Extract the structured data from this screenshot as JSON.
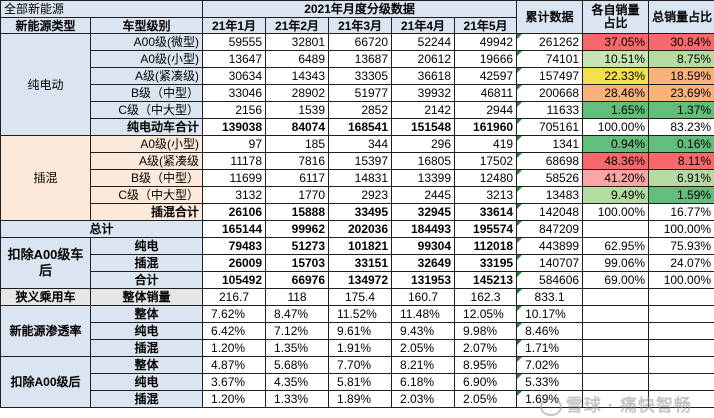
{
  "header": {
    "top_left": "全部新能源",
    "group_title": "2021年月度分级数据",
    "col_type": "新能源类型",
    "col_level": "车型级别",
    "months": [
      "21年1月",
      "21年2月",
      "21年3月",
      "21年4月",
      "21年5月"
    ],
    "cum": "累计数据",
    "share_own": "各自销量占比",
    "share_total": "总销量占比"
  },
  "sections": {
    "ev": "纯电动",
    "phev": "插混",
    "total": "总计",
    "ex_a00": "扣除A00级车后",
    "narrow": "狭义乘用车",
    "penetration": "新能源渗透率",
    "ex_a00_2": "扣除A00级后"
  },
  "rows": {
    "ev": [
      {
        "label": "A00级(微型)",
        "m": [
          "59555",
          "32801",
          "66720",
          "52244",
          "49942"
        ],
        "cum": "261262",
        "own": "37.05%",
        "tot": "30.84%"
      },
      {
        "label": "A0级(小型)",
        "m": [
          "13647",
          "6489",
          "13687",
          "20612",
          "19666"
        ],
        "cum": "74101",
        "own": "10.51%",
        "tot": "8.75%"
      },
      {
        "label": "A级(紧凑级)",
        "m": [
          "30634",
          "14343",
          "33305",
          "36618",
          "42597"
        ],
        "cum": "157497",
        "own": "22.33%",
        "tot": "18.59%"
      },
      {
        "label": "B级（中型）",
        "m": [
          "33046",
          "28902",
          "51977",
          "39932",
          "46811"
        ],
        "cum": "200668",
        "own": "28.46%",
        "tot": "23.69%"
      },
      {
        "label": "C级（中大型）",
        "m": [
          "2156",
          "1539",
          "2852",
          "2142",
          "2944"
        ],
        "cum": "11633",
        "own": "1.65%",
        "tot": "1.37%"
      },
      {
        "label": "纯电动车合计",
        "m": [
          "139038",
          "84074",
          "168541",
          "151548",
          "161960"
        ],
        "cum": "705161",
        "own": "100.00%",
        "tot": "83.23%"
      }
    ],
    "phev": [
      {
        "label": "A0级(小型)",
        "m": [
          "97",
          "185",
          "344",
          "296",
          "419"
        ],
        "cum": "1341",
        "own": "0.94%",
        "tot": "0.16%"
      },
      {
        "label": "A级(紧凑级",
        "m": [
          "11178",
          "7816",
          "15397",
          "16805",
          "17502"
        ],
        "cum": "68698",
        "own": "48.36%",
        "tot": "8.11%"
      },
      {
        "label": "B级（中型）",
        "m": [
          "11699",
          "6117",
          "14831",
          "13399",
          "12480"
        ],
        "cum": "58526",
        "own": "41.20%",
        "tot": "6.91%"
      },
      {
        "label": "C级（中大型）",
        "m": [
          "3132",
          "1770",
          "2923",
          "2445",
          "3213"
        ],
        "cum": "13483",
        "own": "9.49%",
        "tot": "1.59%"
      },
      {
        "label": "插混合计",
        "m": [
          "26106",
          "15888",
          "33495",
          "32945",
          "33614"
        ],
        "cum": "142048",
        "own": "100.00%",
        "tot": "16.77%"
      }
    ],
    "total": {
      "m": [
        "165144",
        "99962",
        "202036",
        "184493",
        "195574"
      ],
      "cum": "847209",
      "own": "",
      "tot": "100.00%"
    },
    "ex_a00": [
      {
        "label": "纯电",
        "m": [
          "79483",
          "51273",
          "101821",
          "99304",
          "112018"
        ],
        "cum": "443899",
        "own": "62.95%",
        "tot": "75.93%"
      },
      {
        "label": "插混",
        "m": [
          "26009",
          "15703",
          "33151",
          "32649",
          "33195"
        ],
        "cum": "140707",
        "own": "99.06%",
        "tot": "24.07%"
      },
      {
        "label": "合计",
        "m": [
          "105492",
          "66976",
          "134972",
          "131953",
          "145213"
        ],
        "cum": "584606",
        "own": "69.00%",
        "tot": "100.00%"
      }
    ],
    "narrow": {
      "label": "整体销量",
      "m": [
        "216.7",
        "118",
        "175.4",
        "160.7",
        "162.3"
      ],
      "cum": "833.1",
      "own": "",
      "tot": ""
    },
    "penetration": [
      {
        "label": "整体",
        "m": [
          "7.62%",
          "8.47%",
          "11.52%",
          "11.48%",
          "12.05%"
        ],
        "cum": "10.17%"
      },
      {
        "label": "纯电",
        "m": [
          "6.42%",
          "7.12%",
          "9.61%",
          "9.43%",
          "9.98%"
        ],
        "cum": "8.46%"
      },
      {
        "label": "插混",
        "m": [
          "1.20%",
          "1.35%",
          "1.91%",
          "2.05%",
          "2.07%"
        ],
        "cum": "1.71%"
      }
    ],
    "ex_a00_2": [
      {
        "label": "整体",
        "m": [
          "4.87%",
          "5.68%",
          "7.70%",
          "8.21%",
          "8.95%"
        ],
        "cum": "7.02%"
      },
      {
        "label": "纯电",
        "m": [
          "3.67%",
          "4.35%",
          "5.81%",
          "6.18%",
          "6.90%"
        ],
        "cum": "5.33%"
      },
      {
        "label": "插混",
        "m": [
          "1.20%",
          "1.33%",
          "1.89%",
          "2.03%",
          "2.05%"
        ],
        "cum": "1.69%"
      }
    ]
  },
  "colors": {
    "header_blue": "#dbe5f1",
    "phev_peach": "#fde9d9",
    "cum_marker_green": "#2e7d32"
  },
  "watermark": "雪球 · 痛快智畅"
}
